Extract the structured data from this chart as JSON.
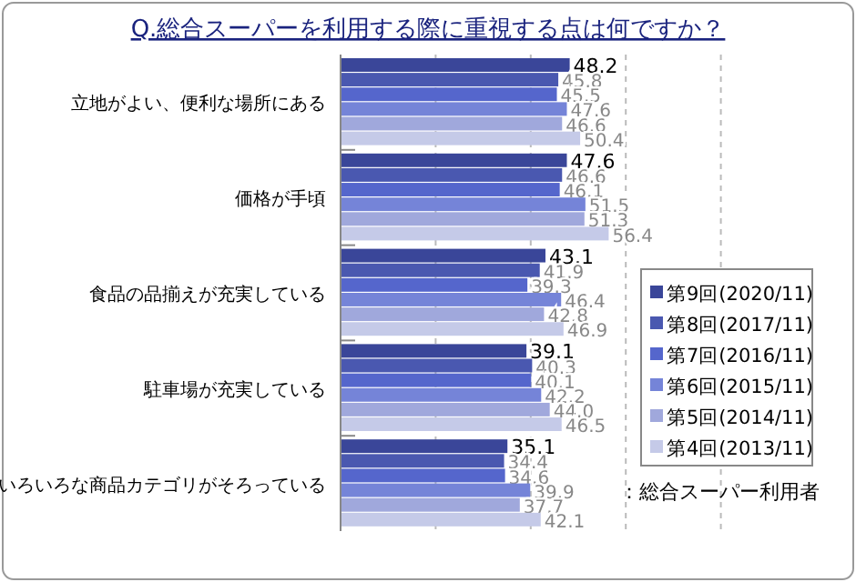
{
  "chart_data": {
    "type": "bar",
    "orientation": "horizontal",
    "title": "Q.総合スーパーを利用する際に重視する点は何ですか？",
    "categories": [
      "立地がよい、便利な場所にある",
      "価格が手頃",
      "食品の品揃えが充実している",
      "駐車場が充実している",
      "いろいろな商品カテゴリがそろっている"
    ],
    "series": [
      {
        "name": "第9回(2020/11)",
        "color": "#3a4699",
        "values": [
          48.2,
          47.6,
          43.1,
          39.1,
          35.1
        ],
        "value_labels": [
          "48.2",
          "47.6",
          "43.1",
          "39.1",
          "35.1"
        ]
      },
      {
        "name": "第8回(2017/11)",
        "color": "#4a58b0",
        "values": [
          45.8,
          46.6,
          41.9,
          40.3,
          34.4
        ],
        "value_labels": [
          "45.8",
          "46.6",
          "41.9",
          "40.3",
          "34.4"
        ]
      },
      {
        "name": "第7回(2016/11)",
        "color": "#5566cc",
        "values": [
          45.5,
          46.1,
          39.3,
          40.1,
          34.6
        ],
        "value_labels": [
          "45.5",
          "46.1",
          "39.3",
          "40.1",
          "34.6"
        ]
      },
      {
        "name": "第6回(2015/11)",
        "color": "#7584d8",
        "values": [
          47.6,
          51.5,
          46.4,
          42.2,
          39.9
        ],
        "value_labels": [
          "47.6",
          "51.5",
          "46.4",
          "42.2",
          "39.9"
        ]
      },
      {
        "name": "第5回(2014/11)",
        "color": "#a0a8dc",
        "values": [
          46.6,
          51.3,
          42.8,
          44.0,
          37.7
        ],
        "value_labels": [
          "46.6",
          "51.3",
          "42.8",
          "44.0",
          "37.7"
        ]
      },
      {
        "name": "第4回(2013/11)",
        "color": "#c5cae8",
        "values": [
          50.4,
          56.4,
          46.9,
          46.5,
          42.1
        ],
        "value_labels": [
          "50.4",
          "56.4",
          "46.9",
          "46.5",
          "42.1"
        ]
      }
    ],
    "xlim": [
      0,
      100
    ],
    "xticks": [
      {
        "value": 20,
        "label": null
      },
      {
        "value": 40,
        "label": null
      },
      {
        "value": 60,
        "label": null
      },
      {
        "value": 80,
        "label": null
      }
    ],
    "grid": "x",
    "tick_labels": "y",
    "legend": "right",
    "annotations": [
      "：総合スーパー利用者"
    ]
  }
}
